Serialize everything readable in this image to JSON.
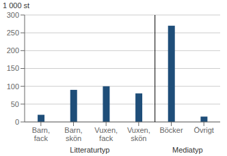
{
  "chart_data": {
    "type": "bar",
    "y_label": "1 000 st",
    "categories": [
      "Barn,\nfack",
      "Barn,\nskön",
      "Vuxen,\nfack",
      "Vuxen,\nskön",
      "Böcker",
      "Övrigt"
    ],
    "values": [
      20,
      90,
      100,
      80,
      270,
      15
    ],
    "color": "#1F4E79",
    "ylim": [
      0,
      300
    ],
    "yticks": [
      0,
      50,
      100,
      150,
      200,
      250,
      300
    ],
    "grid": true,
    "groups": [
      {
        "label": "Litteraturtyp",
        "categories": [
          "Barn,\nfack",
          "Barn,\nskön",
          "Vuxen,\nfack",
          "Vuxen,\nskön"
        ]
      },
      {
        "label": "Mediatyp",
        "categories": [
          "Böcker",
          "Övrigt"
        ]
      }
    ]
  }
}
